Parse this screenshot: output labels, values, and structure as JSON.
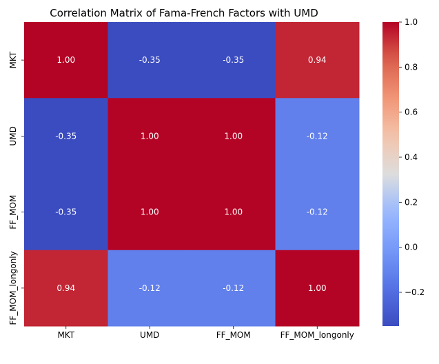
{
  "chart_data": {
    "type": "heatmap",
    "title": "Correlation Matrix of Fama-French Factors with UMD",
    "xlabel": "",
    "ylabel": "",
    "x_categories": [
      "MKT",
      "UMD",
      "FF_MOM",
      "FF_MOM_longonly"
    ],
    "y_categories": [
      "MKT",
      "UMD",
      "FF_MOM",
      "FF_MOM_longonly"
    ],
    "values": [
      [
        1.0,
        -0.35,
        -0.35,
        0.94
      ],
      [
        -0.35,
        1.0,
        1.0,
        -0.12
      ],
      [
        -0.35,
        1.0,
        1.0,
        -0.12
      ],
      [
        0.94,
        -0.12,
        -0.12,
        1.0
      ]
    ],
    "cell_labels": [
      [
        "1.00",
        "-0.35",
        "-0.35",
        "0.94"
      ],
      [
        "-0.35",
        "1.00",
        "1.00",
        "-0.12"
      ],
      [
        "-0.35",
        "1.00",
        "1.00",
        "-0.12"
      ],
      [
        "0.94",
        "-0.12",
        "-0.12",
        "1.00"
      ]
    ],
    "colormap": "coolwarm",
    "colorbar": {
      "vmin": -0.35,
      "vmax": 1.0,
      "ticks": [
        -0.2,
        0.0,
        0.2,
        0.4,
        0.6,
        0.8,
        1.0
      ],
      "tick_labels": [
        "−0.2",
        "0.0",
        "0.2",
        "0.4",
        "0.6",
        "0.8",
        "1.0"
      ]
    },
    "colors": {
      "low": "#3b4cc0",
      "mid": "#dddddd",
      "high": "#b40426"
    }
  }
}
